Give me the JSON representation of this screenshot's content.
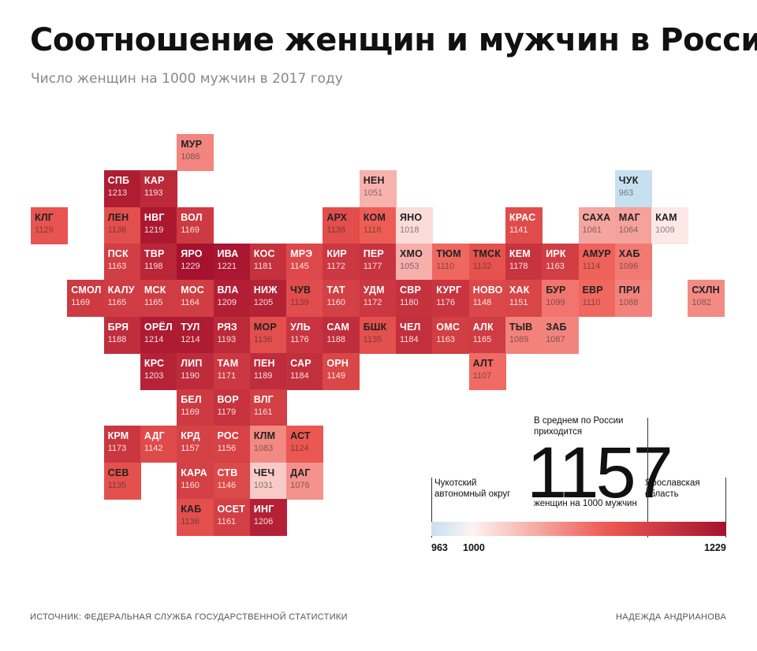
{
  "title": "Соотношение женщин и мужчин в России",
  "subtitle": "Число женщин на 1000 мужчин в 2017 году",
  "legend": {
    "avg_note": "В среднем по России\nприходится",
    "avg_value": "1157",
    "avg_unit": "женщин на 1000 мужчин",
    "min_label": "Чукотский автономный округ",
    "max_label": "Ярославская область",
    "tick_min": "963",
    "tick_mid": "1000",
    "tick_max": "1229"
  },
  "footer": {
    "source": "ИСТОЧНИК: ФЕДЕРАЛЬНАЯ СЛУЖБА ГОСУДАРСТВЕННОЙ СТАТИСТИКИ",
    "author": "НАДЕЖДА АНДРИАНОВА"
  },
  "colors": {
    "low": "#c6e0f0",
    "neutral": "#fdf3f1",
    "mid": "#ee5a52",
    "high": "#a4122e"
  },
  "chart_data": {
    "type": "heatmap",
    "value_range": [
      963,
      1229
    ],
    "regions": [
      {
        "code": "МУР",
        "value": 1086,
        "col": 4,
        "row": 0
      },
      {
        "code": "СПБ",
        "value": 1213,
        "col": 2,
        "row": 1
      },
      {
        "code": "КАР",
        "value": 1193,
        "col": 3,
        "row": 1
      },
      {
        "code": "НЕН",
        "value": 1051,
        "col": 9,
        "row": 1
      },
      {
        "code": "ЧУК",
        "value": 963,
        "col": 16,
        "row": 1
      },
      {
        "code": "КЛГ",
        "value": 1129,
        "col": 0,
        "row": 2
      },
      {
        "code": "ЛЕН",
        "value": 1136,
        "col": 2,
        "row": 2
      },
      {
        "code": "НВГ",
        "value": 1219,
        "col": 3,
        "row": 2
      },
      {
        "code": "ВОЛ",
        "value": 1169,
        "col": 4,
        "row": 2
      },
      {
        "code": "АРХ",
        "value": 1138,
        "col": 8,
        "row": 2
      },
      {
        "code": "КОМ",
        "value": 1118,
        "col": 9,
        "row": 2
      },
      {
        "code": "ЯНО",
        "value": 1018,
        "col": 10,
        "row": 2
      },
      {
        "code": "КРАС",
        "value": 1141,
        "col": 13,
        "row": 2
      },
      {
        "code": "САХА",
        "value": 1061,
        "col": 15,
        "row": 2
      },
      {
        "code": "МАГ",
        "value": 1064,
        "col": 16,
        "row": 2
      },
      {
        "code": "КАМ",
        "value": 1009,
        "col": 17,
        "row": 2
      },
      {
        "code": "ПСК",
        "value": 1163,
        "col": 2,
        "row": 3
      },
      {
        "code": "ТВР",
        "value": 1198,
        "col": 3,
        "row": 3
      },
      {
        "code": "ЯРО",
        "value": 1229,
        "col": 4,
        "row": 3
      },
      {
        "code": "ИВА",
        "value": 1221,
        "col": 5,
        "row": 3
      },
      {
        "code": "КОС",
        "value": 1181,
        "col": 6,
        "row": 3
      },
      {
        "code": "МРЭ",
        "value": 1145,
        "col": 7,
        "row": 3
      },
      {
        "code": "КИР",
        "value": 1172,
        "col": 8,
        "row": 3
      },
      {
        "code": "ПЕР",
        "value": 1177,
        "col": 9,
        "row": 3
      },
      {
        "code": "ХМО",
        "value": 1053,
        "col": 10,
        "row": 3
      },
      {
        "code": "ТЮМ",
        "value": 1110,
        "col": 11,
        "row": 3
      },
      {
        "code": "ТМСК",
        "value": 1132,
        "col": 12,
        "row": 3
      },
      {
        "code": "КЕМ",
        "value": 1178,
        "col": 13,
        "row": 3
      },
      {
        "code": "ИРК",
        "value": 1163,
        "col": 14,
        "row": 3
      },
      {
        "code": "АМУР",
        "value": 1114,
        "col": 15,
        "row": 3
      },
      {
        "code": "ХАБ",
        "value": 1096,
        "col": 16,
        "row": 3
      },
      {
        "code": "СМОЛ",
        "value": 1169,
        "col": 1,
        "row": 4
      },
      {
        "code": "КАЛУ",
        "value": 1165,
        "col": 2,
        "row": 4
      },
      {
        "code": "МСК",
        "value": 1165,
        "col": 3,
        "row": 4
      },
      {
        "code": "МОС",
        "value": 1164,
        "col": 4,
        "row": 4
      },
      {
        "code": "ВЛА",
        "value": 1209,
        "col": 5,
        "row": 4
      },
      {
        "code": "НИЖ",
        "value": 1205,
        "col": 6,
        "row": 4
      },
      {
        "code": "ЧУВ",
        "value": 1139,
        "col": 7,
        "row": 4
      },
      {
        "code": "ТАТ",
        "value": 1160,
        "col": 8,
        "row": 4
      },
      {
        "code": "УДМ",
        "value": 1172,
        "col": 9,
        "row": 4
      },
      {
        "code": "СВР",
        "value": 1180,
        "col": 10,
        "row": 4
      },
      {
        "code": "КУРГ",
        "value": 1176,
        "col": 11,
        "row": 4
      },
      {
        "code": "НОВО",
        "value": 1148,
        "col": 12,
        "row": 4
      },
      {
        "code": "ХАК",
        "value": 1151,
        "col": 13,
        "row": 4
      },
      {
        "code": "БУР",
        "value": 1099,
        "col": 14,
        "row": 4
      },
      {
        "code": "ЕВР",
        "value": 1110,
        "col": 15,
        "row": 4
      },
      {
        "code": "ПРИ",
        "value": 1088,
        "col": 16,
        "row": 4
      },
      {
        "code": "СХЛН",
        "value": 1082,
        "col": 18,
        "row": 4
      },
      {
        "code": "БРЯ",
        "value": 1188,
        "col": 2,
        "row": 5
      },
      {
        "code": "ОРЁЛ",
        "value": 1214,
        "col": 3,
        "row": 5
      },
      {
        "code": "ТУЛ",
        "value": 1214,
        "col": 4,
        "row": 5
      },
      {
        "code": "РЯЗ",
        "value": 1193,
        "col": 5,
        "row": 5
      },
      {
        "code": "МОР",
        "value": 1136,
        "col": 6,
        "row": 5
      },
      {
        "code": "УЛЬ",
        "value": 1176,
        "col": 7,
        "row": 5
      },
      {
        "code": "САМ",
        "value": 1188,
        "col": 8,
        "row": 5
      },
      {
        "code": "БШК",
        "value": 1135,
        "col": 9,
        "row": 5
      },
      {
        "code": "ЧЕЛ",
        "value": 1184,
        "col": 10,
        "row": 5
      },
      {
        "code": "ОМС",
        "value": 1163,
        "col": 11,
        "row": 5
      },
      {
        "code": "АЛК",
        "value": 1165,
        "col": 12,
        "row": 5
      },
      {
        "code": "ТЫВ",
        "value": 1089,
        "col": 13,
        "row": 5
      },
      {
        "code": "ЗАБ",
        "value": 1087,
        "col": 14,
        "row": 5
      },
      {
        "code": "КРС",
        "value": 1203,
        "col": 3,
        "row": 6
      },
      {
        "code": "ЛИП",
        "value": 1190,
        "col": 4,
        "row": 6
      },
      {
        "code": "ТАМ",
        "value": 1171,
        "col": 5,
        "row": 6
      },
      {
        "code": "ПЕН",
        "value": 1189,
        "col": 6,
        "row": 6
      },
      {
        "code": "САР",
        "value": 1184,
        "col": 7,
        "row": 6
      },
      {
        "code": "ОРН",
        "value": 1149,
        "col": 8,
        "row": 6
      },
      {
        "code": "АЛТ",
        "value": 1107,
        "col": 12,
        "row": 6
      },
      {
        "code": "БЕЛ",
        "value": 1169,
        "col": 4,
        "row": 7
      },
      {
        "code": "ВОР",
        "value": 1179,
        "col": 5,
        "row": 7
      },
      {
        "code": "ВЛГ",
        "value": 1161,
        "col": 6,
        "row": 7
      },
      {
        "code": "КРМ",
        "value": 1173,
        "col": 2,
        "row": 8
      },
      {
        "code": "АДГ",
        "value": 1142,
        "col": 3,
        "row": 8
      },
      {
        "code": "КРД",
        "value": 1157,
        "col": 4,
        "row": 8
      },
      {
        "code": "РОС",
        "value": 1156,
        "col": 5,
        "row": 8
      },
      {
        "code": "КЛМ",
        "value": 1083,
        "col": 6,
        "row": 8
      },
      {
        "code": "АСТ",
        "value": 1124,
        "col": 7,
        "row": 8
      },
      {
        "code": "СЕВ",
        "value": 1135,
        "col": 2,
        "row": 9
      },
      {
        "code": "КАРА",
        "value": 1160,
        "col": 4,
        "row": 9
      },
      {
        "code": "СТВ",
        "value": 1146,
        "col": 5,
        "row": 9
      },
      {
        "code": "ЧЕЧ",
        "value": 1031,
        "col": 6,
        "row": 9
      },
      {
        "code": "ДАГ",
        "value": 1076,
        "col": 7,
        "row": 9
      },
      {
        "code": "КАБ",
        "value": 1136,
        "col": 4,
        "row": 10
      },
      {
        "code": "ОСЕТ",
        "value": 1161,
        "col": 5,
        "row": 10
      },
      {
        "code": "ИНГ",
        "value": 1206,
        "col": 6,
        "row": 10
      }
    ]
  }
}
